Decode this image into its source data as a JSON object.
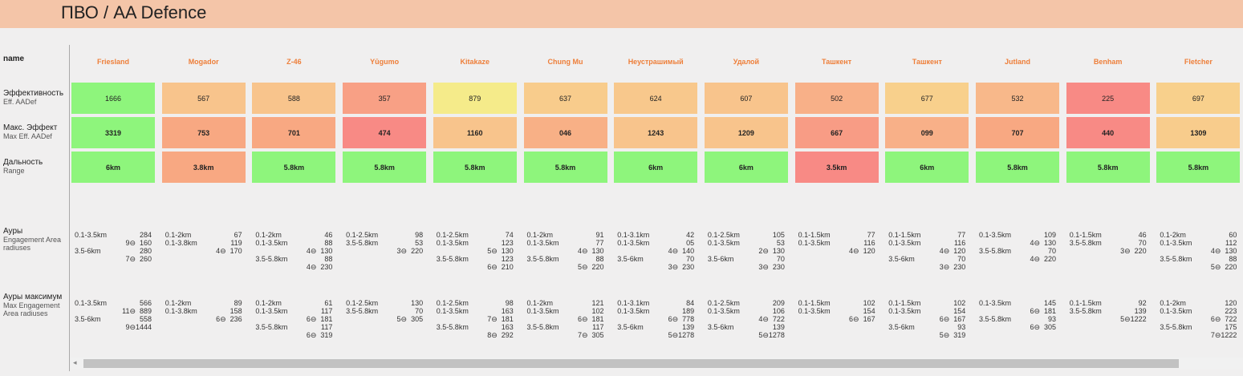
{
  "title": "ПВО / AA Defence",
  "row_labels": {
    "name": "name",
    "eff_ru": "Эффективность",
    "eff_en": "Eff. AADef",
    "max_ru": "Макс. Эффект",
    "max_en": "Max Eff. AADef",
    "range_ru": "Дальность",
    "range_en": "Range",
    "auras_ru": "Ауры",
    "auras_en1": "Engagement Area",
    "auras_en2": "radiuses",
    "maxauras_ru": "Ауры максимум",
    "maxauras_en1": "Max Engagement",
    "maxauras_en2": "Area radiuses"
  },
  "ships": [
    {
      "name": "Friesland",
      "eff": "1666",
      "eff_color": "#8ef57c",
      "max": "3319",
      "max_color": "#8ef57c",
      "range": "6km",
      "range_color": "#8ef57c",
      "auras": [
        [
          "0.1-3.5km",
          "",
          "284"
        ],
        [
          "",
          "9",
          "160"
        ],
        [
          "3.5-6km",
          "",
          "280"
        ],
        [
          "",
          "7",
          "260"
        ]
      ],
      "max_auras": [
        [
          "0.1-3.5km",
          "",
          "566"
        ],
        [
          "",
          "11",
          "889"
        ],
        [
          "3.5-6km",
          "",
          "558"
        ],
        [
          "",
          "9",
          "1444"
        ]
      ]
    },
    {
      "name": "Mogador",
      "eff": "567",
      "eff_color": "#f8c48c",
      "max": "753",
      "max_color": "#f8a882",
      "range": "3.8km",
      "range_color": "#f8a882",
      "auras": [
        [
          "0.1-2km",
          "",
          "67"
        ],
        [
          "0.1-3.8km",
          "",
          "119"
        ],
        [
          "",
          "4",
          "170"
        ]
      ],
      "max_auras": [
        [
          "0.1-2km",
          "",
          "89"
        ],
        [
          "0.1-3.8km",
          "",
          "158"
        ],
        [
          "",
          "6",
          "236"
        ]
      ]
    },
    {
      "name": "Z-46",
      "eff": "588",
      "eff_color": "#f8c48c",
      "max": "701",
      "max_color": "#f8a882",
      "range": "5.8km",
      "range_color": "#8ef57c",
      "auras": [
        [
          "0.1-2km",
          "",
          "46"
        ],
        [
          "0.1-3.5km",
          "",
          "88"
        ],
        [
          "",
          "4",
          "130"
        ],
        [
          "3.5-5.8km",
          "",
          "88"
        ],
        [
          "",
          "4",
          "230"
        ]
      ],
      "max_auras": [
        [
          "0.1-2km",
          "",
          "61"
        ],
        [
          "0.1-3.5km",
          "",
          "117"
        ],
        [
          "",
          "6",
          "181"
        ],
        [
          "3.5-5.8km",
          "",
          "117"
        ],
        [
          "",
          "6",
          "319"
        ]
      ]
    },
    {
      "name": "Yūgumo",
      "eff": "357",
      "eff_color": "#f8a085",
      "max": "474",
      "max_color": "#f88a85",
      "range": "5.8km",
      "range_color": "#8ef57c",
      "auras": [
        [
          "0.1-2.5km",
          "",
          "98"
        ],
        [
          "3.5-5.8km",
          "",
          "53"
        ],
        [
          "",
          "3",
          "220"
        ]
      ],
      "max_auras": [
        [
          "0.1-2.5km",
          "",
          "130"
        ],
        [
          "3.5-5.8km",
          "",
          "70"
        ],
        [
          "",
          "5",
          "305"
        ]
      ]
    },
    {
      "name": "Kitakaze",
      "eff": "879",
      "eff_color": "#f5eb8a",
      "max": "1160",
      "max_color": "#f8c48c",
      "range": "5.8km",
      "range_color": "#8ef57c",
      "auras": [
        [
          "0.1-2.5km",
          "",
          "74"
        ],
        [
          "0.1-3.5km",
          "",
          "123"
        ],
        [
          "",
          "5",
          "130"
        ],
        [
          "3.5-5.8km",
          "",
          "123"
        ],
        [
          "",
          "6",
          "210"
        ]
      ],
      "max_auras": [
        [
          "0.1-2.5km",
          "",
          "98"
        ],
        [
          "0.1-3.5km",
          "",
          "163"
        ],
        [
          "",
          "7",
          "181"
        ],
        [
          "3.5-5.8km",
          "",
          "163"
        ],
        [
          "",
          "8",
          "292"
        ]
      ]
    },
    {
      "name": "Chung Mu",
      "eff": "637",
      "eff_color": "#f8cc8c",
      "max": "046",
      "max_color": "#f8b086",
      "range": "5.8km",
      "range_color": "#8ef57c",
      "auras": [
        [
          "0.1-2km",
          "",
          "91"
        ],
        [
          "0.1-3.5km",
          "",
          "77"
        ],
        [
          "",
          "4",
          "130"
        ],
        [
          "3.5-5.8km",
          "",
          "88"
        ],
        [
          "",
          "5",
          "220"
        ]
      ],
      "max_auras": [
        [
          "0.1-2km",
          "",
          "121"
        ],
        [
          "0.1-3.5km",
          "",
          "102"
        ],
        [
          "",
          "6",
          "181"
        ],
        [
          "3.5-5.8km",
          "",
          "117"
        ],
        [
          "",
          "7",
          "305"
        ]
      ]
    },
    {
      "name": "Неустрашимый",
      "eff": "624",
      "eff_color": "#f8c88c",
      "max": "1243",
      "max_color": "#f8c48c",
      "range": "6km",
      "range_color": "#8ef57c",
      "auras": [
        [
          "0.1-3.1km",
          "",
          "42"
        ],
        [
          "0.1-3.5km",
          "",
          "05"
        ],
        [
          "",
          "4",
          "140"
        ],
        [
          "3.5-6km",
          "",
          "70"
        ],
        [
          "",
          "3",
          "230"
        ]
      ],
      "max_auras": [
        [
          "0.1-3.1km",
          "",
          "84"
        ],
        [
          "0.1-3.5km",
          "",
          "189"
        ],
        [
          "",
          "6",
          "778"
        ],
        [
          "3.5-6km",
          "",
          "139"
        ],
        [
          "",
          "5",
          "1278"
        ]
      ]
    },
    {
      "name": "Удалой",
      "eff": "607",
      "eff_color": "#f8c48c",
      "max": "1209",
      "max_color": "#f8c48c",
      "range": "6km",
      "range_color": "#8ef57c",
      "auras": [
        [
          "0.1-2.5km",
          "",
          "105"
        ],
        [
          "0.1-3.5km",
          "",
          "53"
        ],
        [
          "",
          "2",
          "130"
        ],
        [
          "3.5-6km",
          "",
          "70"
        ],
        [
          "",
          "3",
          "230"
        ]
      ],
      "max_auras": [
        [
          "0.1-2.5km",
          "",
          "209"
        ],
        [
          "0.1-3.5km",
          "",
          "106"
        ],
        [
          "",
          "4",
          "722"
        ],
        [
          "3.5-6km",
          "",
          "139"
        ],
        [
          "",
          "5",
          "1278"
        ]
      ]
    },
    {
      "name": "Ташкент",
      "eff": "502",
      "eff_color": "#f8b088",
      "max": "667",
      "max_color": "#f89c85",
      "range": "3.5km",
      "range_color": "#f88a85",
      "auras": [
        [
          "0.1-1.5km",
          "",
          "77"
        ],
        [
          "0.1-3.5km",
          "",
          "116"
        ],
        [
          "",
          "4",
          "120"
        ]
      ],
      "max_auras": [
        [
          "0.1-1.5km",
          "",
          "102"
        ],
        [
          "0.1-3.5km",
          "",
          "154"
        ],
        [
          "",
          "6",
          "167"
        ]
      ]
    },
    {
      "name": "Ташкент",
      "eff": "677",
      "eff_color": "#f8d08c",
      "max": "099",
      "max_color": "#f8b088",
      "range": "6km",
      "range_color": "#8ef57c",
      "auras": [
        [
          "0.1-1.5km",
          "",
          "77"
        ],
        [
          "0.1-3.5km",
          "",
          "116"
        ],
        [
          "",
          "4",
          "120"
        ],
        [
          "3.5-6km",
          "",
          "70"
        ],
        [
          "",
          "3",
          "230"
        ]
      ],
      "max_auras": [
        [
          "0.1-1.5km",
          "",
          "102"
        ],
        [
          "0.1-3.5km",
          "",
          "154"
        ],
        [
          "",
          "6",
          "167"
        ],
        [
          "3.5-6km",
          "",
          "93"
        ],
        [
          "",
          "5",
          "319"
        ]
      ]
    },
    {
      "name": "Jutland",
      "eff": "532",
      "eff_color": "#f8b88a",
      "max": "707",
      "max_color": "#f8a882",
      "range": "5.8km",
      "range_color": "#8ef57c",
      "auras": [
        [
          "0.1-3.5km",
          "",
          "109"
        ],
        [
          "",
          "4",
          "130"
        ],
        [
          "3.5-5.8km",
          "",
          "70"
        ],
        [
          "",
          "4",
          "220"
        ]
      ],
      "max_auras": [
        [
          "0.1-3.5km",
          "",
          "145"
        ],
        [
          "",
          "6",
          "181"
        ],
        [
          "3.5-5.8km",
          "",
          "93"
        ],
        [
          "",
          "6",
          "305"
        ]
      ]
    },
    {
      "name": "Benham",
      "eff": "225",
      "eff_color": "#f88a85",
      "max": "440",
      "max_color": "#f88a85",
      "range": "5.8km",
      "range_color": "#8ef57c",
      "auras": [
        [
          "0.1-1.5km",
          "",
          "46"
        ],
        [
          "3.5-5.8km",
          "",
          "70"
        ],
        [
          "",
          "3",
          "220"
        ]
      ],
      "max_auras": [
        [
          "0.1-1.5km",
          "",
          "92"
        ],
        [
          "3.5-5.8km",
          "",
          "139"
        ],
        [
          "",
          "5",
          "1222"
        ]
      ]
    },
    {
      "name": "Fletcher",
      "eff": "697",
      "eff_color": "#f8d08c",
      "max": "1309",
      "max_color": "#f8cc8c",
      "range": "5.8km",
      "range_color": "#8ef57c",
      "auras": [
        [
          "0.1-2km",
          "",
          "60"
        ],
        [
          "0.1-3.5km",
          "",
          "112"
        ],
        [
          "",
          "4",
          "130"
        ],
        [
          "3.5-5.8km",
          "",
          "88"
        ],
        [
          "",
          "5",
          "220"
        ]
      ],
      "max_auras": [
        [
          "0.1-2km",
          "",
          "120"
        ],
        [
          "0.1-3.5km",
          "",
          "223"
        ],
        [
          "",
          "6",
          "722"
        ],
        [
          "3.5-5.8km",
          "",
          "175"
        ],
        [
          "",
          "7",
          "1222"
        ]
      ]
    }
  ],
  "ring_glyph": "⊖",
  "scroll_arrow": "◂"
}
